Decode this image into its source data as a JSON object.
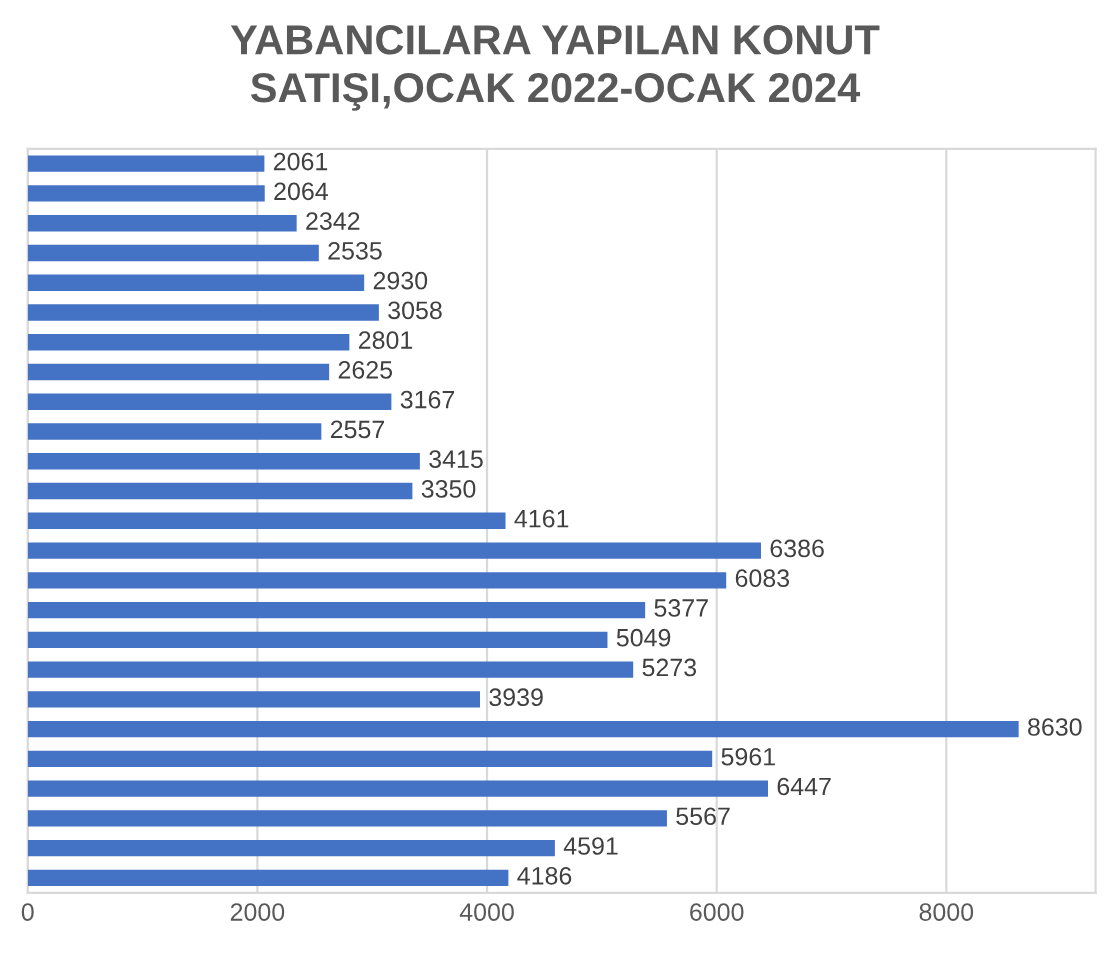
{
  "chart_data": {
    "type": "bar",
    "orientation": "horizontal",
    "title": "YABANCILARA YAPILAN KONUT\nSATIŞI,OCAK 2022-OCAK 2024",
    "categories": [
      null,
      null,
      null,
      null,
      null,
      null,
      null,
      null,
      null,
      null,
      null,
      null,
      null,
      null,
      null,
      null,
      null,
      null,
      null,
      null,
      null,
      null,
      null,
      null,
      null
    ],
    "values": [
      2061,
      2064,
      2342,
      2535,
      2930,
      3058,
      2801,
      2625,
      3167,
      2557,
      3415,
      3350,
      4161,
      6386,
      6083,
      5377,
      5049,
      5273,
      3939,
      8630,
      5961,
      6447,
      5567,
      4591,
      4186
    ],
    "color": "#4472c4",
    "xlim": [
      0,
      9300
    ],
    "xticks": [
      0,
      2000,
      4000,
      6000,
      8000
    ],
    "grid": "x",
    "data_labels": true
  }
}
